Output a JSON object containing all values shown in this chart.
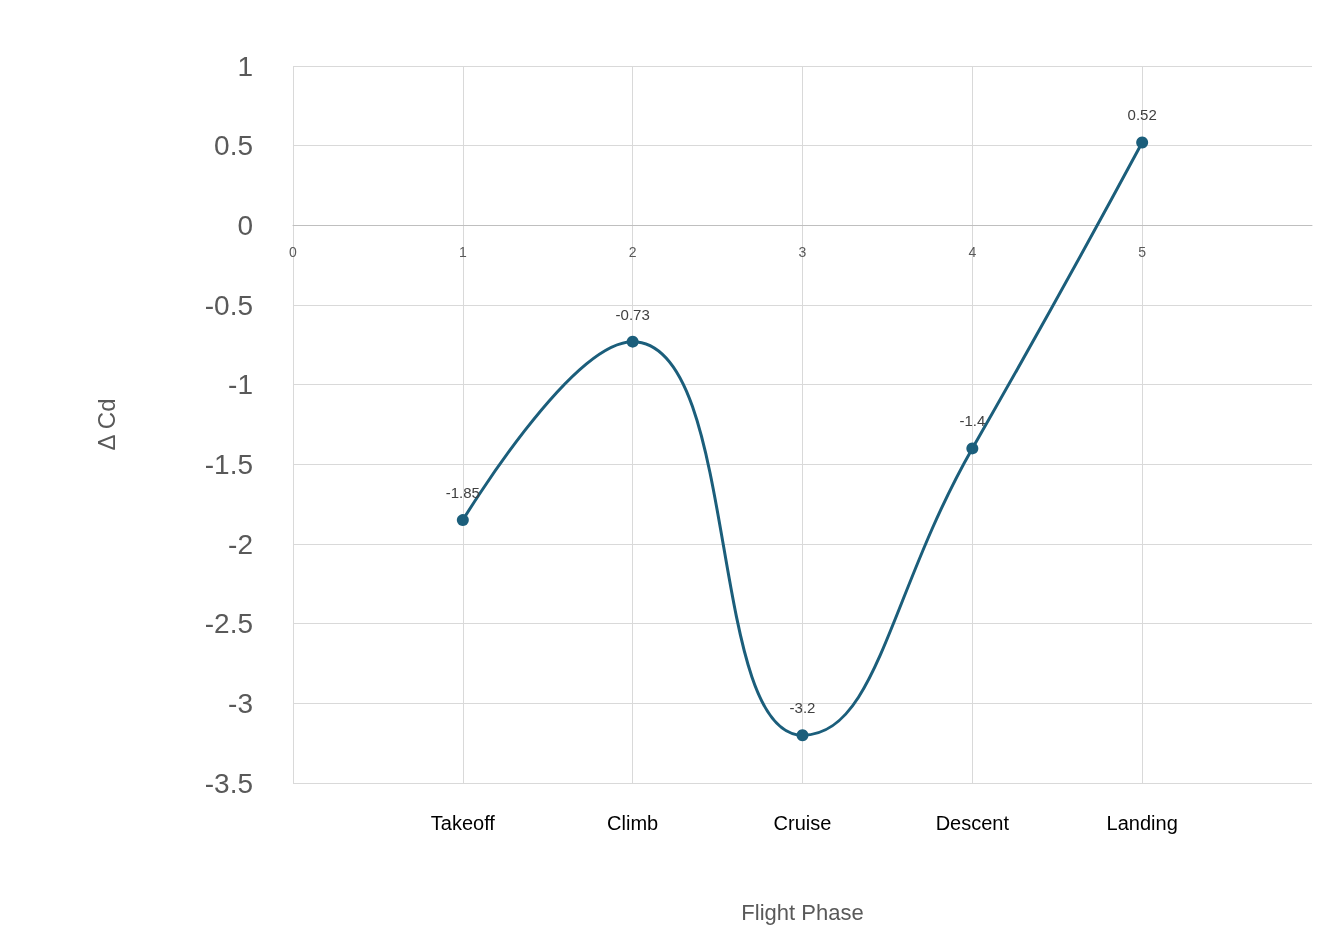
{
  "chart_data": {
    "type": "line",
    "xlabel": "Flight Phase",
    "ylabel": "Δ Cd",
    "categories": [
      null,
      "Takeoff",
      "Climb",
      "Cruise",
      "Descent",
      "Landing",
      null
    ],
    "series": [
      {
        "color": "#1b5e7b",
        "values": [
          null,
          -1.85,
          -0.73,
          -3.2,
          -1.4,
          0.52,
          null
        ]
      }
    ],
    "x2lim": [
      0,
      6
    ],
    "x2ticks": [
      0,
      1,
      2,
      3,
      4,
      5
    ],
    "ylim": [
      -3.5,
      1
    ],
    "yticks": [
      -3.5,
      -3,
      -2.5,
      -2,
      -1.5,
      -1,
      -0.5,
      0,
      0.5,
      1
    ],
    "grid": true,
    "marker": "circle",
    "line_style": "solid",
    "data_labels": true
  }
}
